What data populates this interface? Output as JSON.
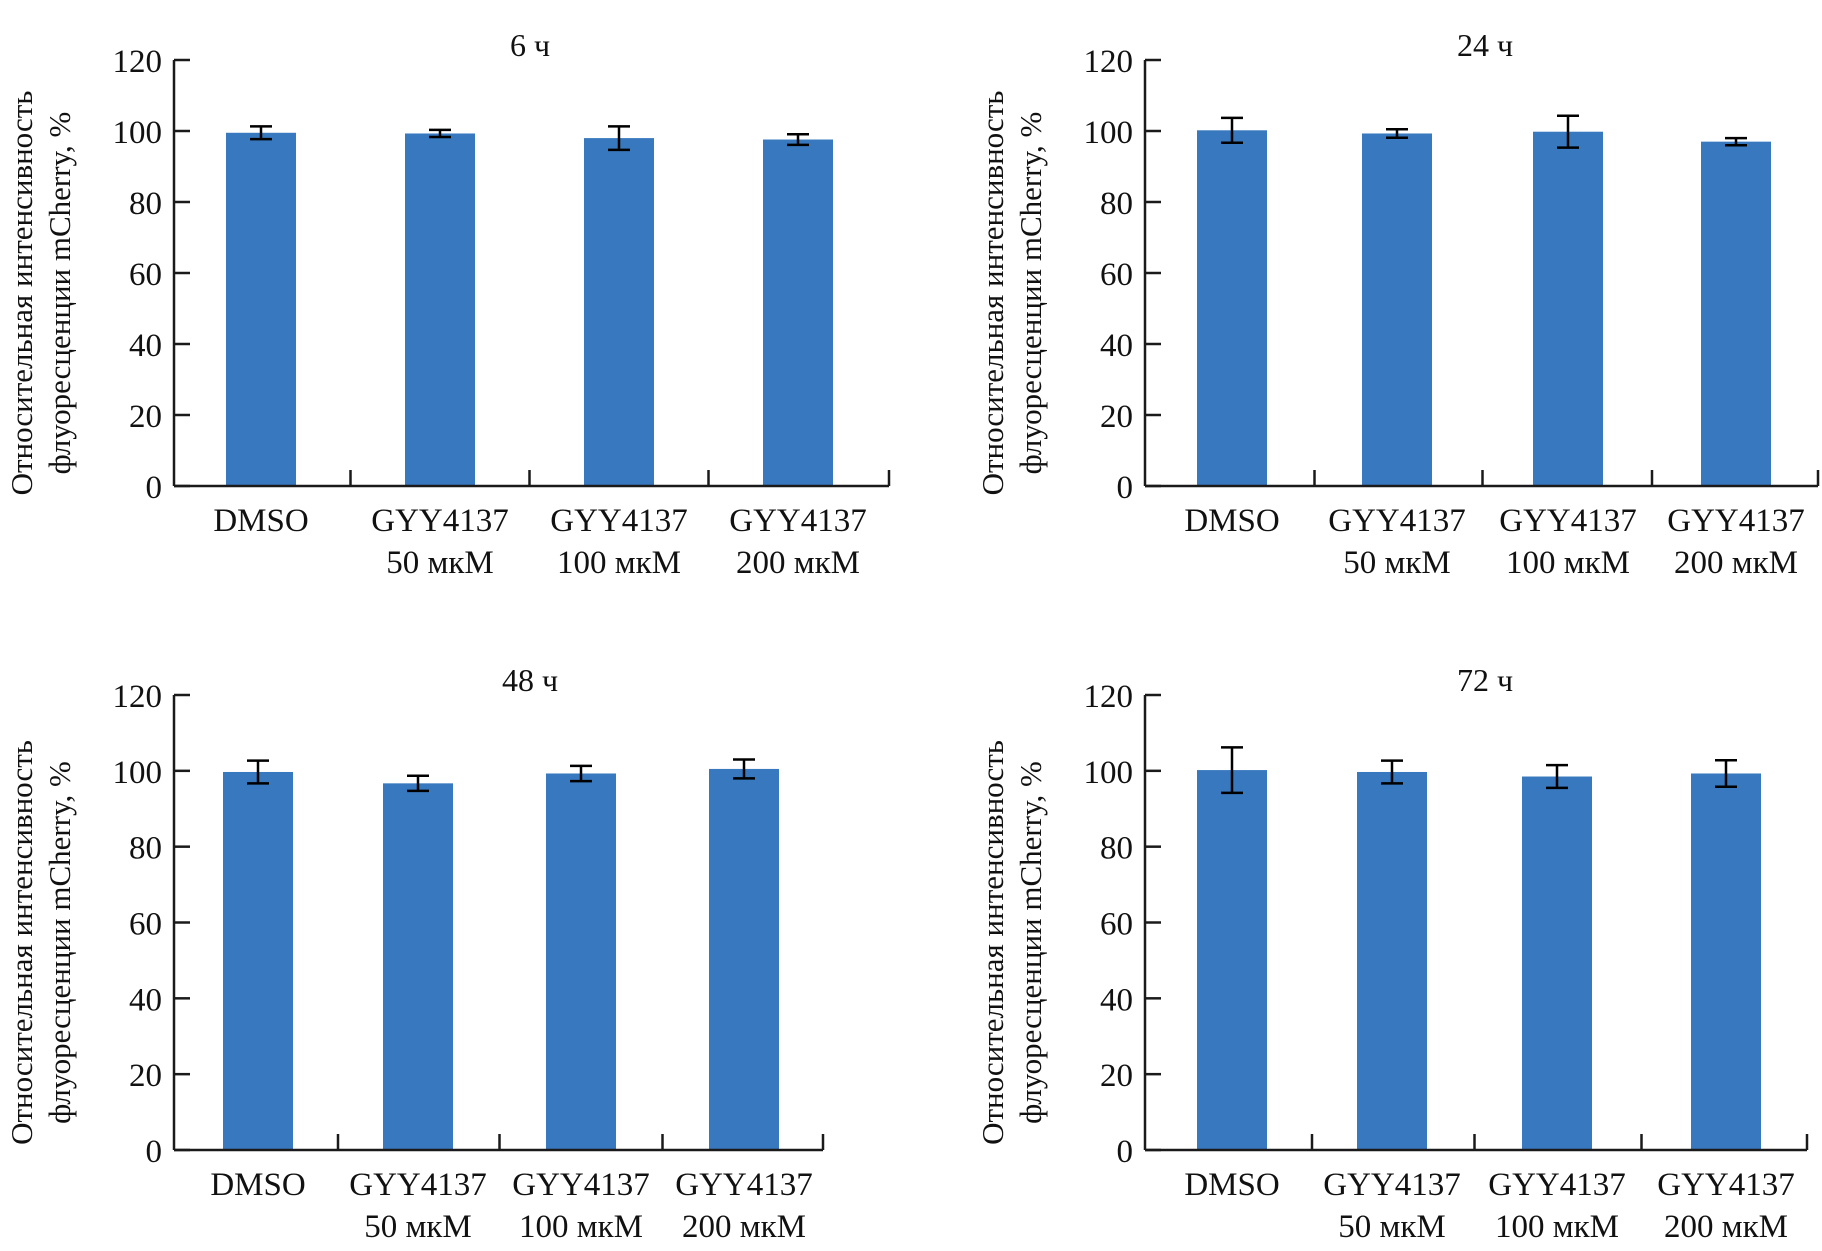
{
  "figure": {
    "y_axis_label_line1": "Относительная интенсивность",
    "y_axis_label_line2": "флуоресценции mCherry, %",
    "bar_color": "#3778BE",
    "axis_color": "#1a1a1a"
  },
  "chart_data": [
    {
      "type": "bar",
      "title": "6 ч",
      "position": "top-left",
      "xlabel": "",
      "ylabel": "Относительная интенсивность флуоресценции mCherry, %",
      "ylim": [
        0,
        120
      ],
      "yticks": [
        0,
        20,
        40,
        60,
        80,
        100,
        120
      ],
      "grid": false,
      "categories": [
        [
          "DMSO",
          ""
        ],
        [
          "GYY4137",
          "50 мкМ"
        ],
        [
          "GYY4137",
          "100 мкМ"
        ],
        [
          "GYY4137",
          "200 мкМ"
        ]
      ],
      "values": [
        99.5,
        99.3,
        98.0,
        97.6
      ],
      "errors": [
        1.8,
        1.0,
        3.3,
        1.5
      ]
    },
    {
      "type": "bar",
      "title": "24 ч",
      "position": "top-right",
      "xlabel": "",
      "ylabel": "Относительная интенсивность флуоресценции mCherry, %",
      "ylim": [
        0,
        120
      ],
      "yticks": [
        0,
        20,
        40,
        60,
        80,
        100,
        120
      ],
      "grid": false,
      "categories": [
        [
          "DMSO",
          ""
        ],
        [
          "GYY4137",
          "50 мкМ"
        ],
        [
          "GYY4137",
          "100 мкМ"
        ],
        [
          "GYY4137",
          "200 мкМ"
        ]
      ],
      "values": [
        100.2,
        99.3,
        99.8,
        97.0
      ],
      "errors": [
        3.5,
        1.2,
        4.5,
        1.0
      ]
    },
    {
      "type": "bar",
      "title": "48 ч",
      "position": "bottom-left",
      "xlabel": "",
      "ylabel": "Относительная интенсивность флуоресценции mCherry, %",
      "ylim": [
        0,
        120
      ],
      "yticks": [
        0,
        20,
        40,
        60,
        80,
        100,
        120
      ],
      "grid": false,
      "categories": [
        [
          "DMSO",
          ""
        ],
        [
          "GYY4137",
          "50 мкМ"
        ],
        [
          "GYY4137",
          "100 мкМ"
        ],
        [
          "GYY4137",
          "200 мкМ"
        ]
      ],
      "values": [
        99.7,
        96.7,
        99.3,
        100.5
      ],
      "errors": [
        3.0,
        2.0,
        2.0,
        2.5
      ]
    },
    {
      "type": "bar",
      "title": "72 ч",
      "position": "bottom-right",
      "xlabel": "",
      "ylabel": "Относительная интенсивность флуоресценции mCherry, %",
      "ylim": [
        0,
        120
      ],
      "yticks": [
        0,
        20,
        40,
        60,
        80,
        100,
        120
      ],
      "grid": false,
      "categories": [
        [
          "DMSO",
          ""
        ],
        [
          "GYY4137",
          "50 мкМ"
        ],
        [
          "GYY4137",
          "100 мкМ"
        ],
        [
          "GYY4137",
          "200 мкМ"
        ]
      ],
      "values": [
        100.2,
        99.7,
        98.5,
        99.3
      ],
      "errors": [
        6.0,
        3.0,
        3.0,
        3.5
      ]
    }
  ]
}
